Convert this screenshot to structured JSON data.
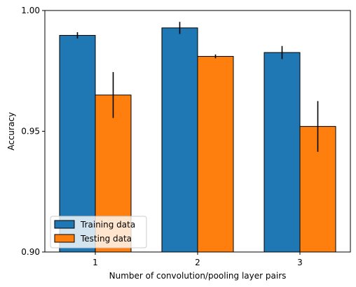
{
  "chart_data": {
    "type": "bar",
    "title": "",
    "xlabel": "Number of convolution/pooling layer pairs",
    "ylabel": "Accuracy",
    "categories": [
      "1",
      "2",
      "3"
    ],
    "ylim": [
      0.9,
      1.0
    ],
    "yticks": [
      {
        "value": 0.9,
        "label": "0.90"
      },
      {
        "value": 0.95,
        "label": "0.95"
      },
      {
        "value": 1.0,
        "label": "1.00"
      }
    ],
    "series": [
      {
        "name": "Training data",
        "color": "#1f77b4",
        "values": [
          0.9897,
          0.9928,
          0.9826
        ],
        "errors": [
          0.0013,
          0.0025,
          0.0027
        ]
      },
      {
        "name": "Testing data",
        "color": "#ff7f0e",
        "values": [
          0.965,
          0.981,
          0.952
        ],
        "errors": [
          0.0095,
          0.0008,
          0.0105
        ]
      }
    ],
    "legend": {
      "location": "lower-left"
    },
    "grid": false
  }
}
